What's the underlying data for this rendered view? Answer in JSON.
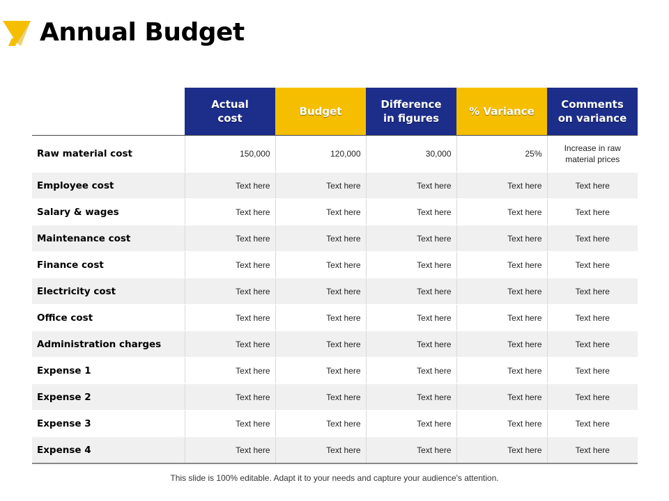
{
  "slide": {
    "title": "Annual Budget",
    "footer": "This slide is 100% editable. Adapt it to your needs and capture your audience's attention."
  },
  "colors": {
    "accent_blue": "#1c2d8a",
    "accent_yellow": "#f5bf00"
  },
  "table": {
    "headers": [
      "Actual\ncost",
      "Budget",
      "Difference\nin figures",
      "% Variance",
      "Comments\non variance"
    ],
    "rows": [
      {
        "label": "Raw material cost",
        "cells": [
          "150,000",
          "120,000",
          "30,000",
          "25%",
          "Increase in raw\nmaterial prices"
        ]
      },
      {
        "label": "Employee cost",
        "cells": [
          "Text here",
          "Text here",
          "Text here",
          "Text here",
          "Text here"
        ]
      },
      {
        "label": "Salary & wages",
        "cells": [
          "Text here",
          "Text here",
          "Text here",
          "Text here",
          "Text here"
        ]
      },
      {
        "label": "Maintenance cost",
        "cells": [
          "Text here",
          "Text here",
          "Text here",
          "Text here",
          "Text here"
        ]
      },
      {
        "label": "Finance cost",
        "cells": [
          "Text here",
          "Text here",
          "Text here",
          "Text here",
          "Text here"
        ]
      },
      {
        "label": "Electricity cost",
        "cells": [
          "Text here",
          "Text here",
          "Text here",
          "Text here",
          "Text here"
        ]
      },
      {
        "label": "Office cost",
        "cells": [
          "Text here",
          "Text here",
          "Text here",
          "Text here",
          "Text here"
        ]
      },
      {
        "label": "Administration charges",
        "cells": [
          "Text here",
          "Text here",
          "Text here",
          "Text here",
          "Text here"
        ]
      },
      {
        "label": "Expense 1",
        "cells": [
          "Text here",
          "Text here",
          "Text here",
          "Text here",
          "Text here"
        ]
      },
      {
        "label": "Expense 2",
        "cells": [
          "Text here",
          "Text here",
          "Text here",
          "Text here",
          "Text here"
        ]
      },
      {
        "label": "Expense 3",
        "cells": [
          "Text here",
          "Text here",
          "Text here",
          "Text here",
          "Text here"
        ]
      },
      {
        "label": "Expense 4",
        "cells": [
          "Text here",
          "Text here",
          "Text here",
          "Text here",
          "Text here"
        ]
      }
    ]
  }
}
